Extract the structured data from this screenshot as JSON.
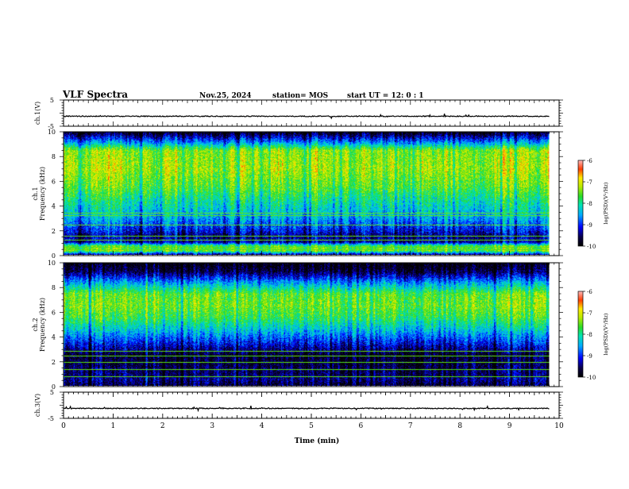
{
  "header": {
    "title": "VLF Spectra",
    "date": "Nov.25, 2024",
    "station": "station= MOS",
    "start": "start  UT =   12: 0  : 1"
  },
  "chart_data": [
    {
      "type": "line",
      "name": "ch1-waveform",
      "ylabel": "ch.1(V)",
      "ylim": [
        -5,
        5
      ],
      "yticks": [
        "5",
        "-5"
      ],
      "baseline": -1.2,
      "xlim": [
        0,
        10
      ]
    },
    {
      "type": "heatmap",
      "name": "ch1-spectrogram",
      "ylabel": "ch.1\nFrequency (kHz)",
      "ylim": [
        0,
        10
      ],
      "yticks": [
        "0",
        "2",
        "4",
        "6",
        "8",
        "10"
      ],
      "xlim": [
        0,
        10
      ],
      "data_extent_x": [
        0,
        9.8
      ],
      "colorbar": {
        "label": "log(PSD)(V²/Hz)",
        "ticks": [
          "-6",
          "-7",
          "-8",
          "-9",
          "-10"
        ],
        "range": [
          -10,
          -6
        ]
      },
      "profile_kHz": [
        [
          0,
          -9.2
        ],
        [
          0.3,
          -7.4
        ],
        [
          0.7,
          -7.6
        ],
        [
          1.0,
          -9.3
        ],
        [
          1.6,
          -9.3
        ],
        [
          2.0,
          -9.0
        ],
        [
          3.0,
          -8.4
        ],
        [
          4.5,
          -7.9
        ],
        [
          5.5,
          -7.5
        ],
        [
          7.0,
          -7.2
        ],
        [
          8.5,
          -7.3
        ],
        [
          9.2,
          -8.6
        ],
        [
          10,
          -9.8
        ]
      ],
      "lines_kHz": [
        0.4,
        0.6,
        1.2,
        1.5,
        2.4,
        3.2,
        3.4
      ]
    },
    {
      "type": "heatmap",
      "name": "ch2-spectrogram",
      "ylabel": "ch.2\nFrequency (kHz)",
      "ylim": [
        0,
        10
      ],
      "yticks": [
        "0",
        "2",
        "4",
        "6",
        "8",
        "10"
      ],
      "xlim": [
        0,
        10
      ],
      "data_extent_x": [
        0,
        9.8
      ],
      "colorbar": {
        "label": "log(PSD)(V²/Hz)",
        "ticks": [
          "-6",
          "-7",
          "-8",
          "-9",
          "-10"
        ],
        "range": [
          -10,
          -6
        ]
      },
      "profile_kHz": [
        [
          0,
          -9.6
        ],
        [
          0.5,
          -9.4
        ],
        [
          1.5,
          -9.6
        ],
        [
          2.5,
          -9.7
        ],
        [
          3.5,
          -9.0
        ],
        [
          4.5,
          -8.3
        ],
        [
          5.5,
          -7.7
        ],
        [
          6.5,
          -7.4
        ],
        [
          7.5,
          -7.5
        ],
        [
          8.5,
          -8.6
        ],
        [
          9.3,
          -9.6
        ],
        [
          10,
          -9.9
        ]
      ],
      "lines_kHz": [
        0.7,
        1.3,
        1.9,
        2.4,
        2.8
      ]
    },
    {
      "type": "line",
      "name": "ch3-waveform",
      "ylabel": "ch.3(V)",
      "ylim": [
        -5,
        5
      ],
      "yticks": [
        "5",
        "-5"
      ],
      "baseline": -1.2,
      "xlim": [
        0,
        10
      ],
      "xlabel": "Time (min)",
      "xticks": [
        "0",
        "1",
        "2",
        "3",
        "4",
        "5",
        "6",
        "7",
        "8",
        "9",
        "10"
      ]
    }
  ]
}
